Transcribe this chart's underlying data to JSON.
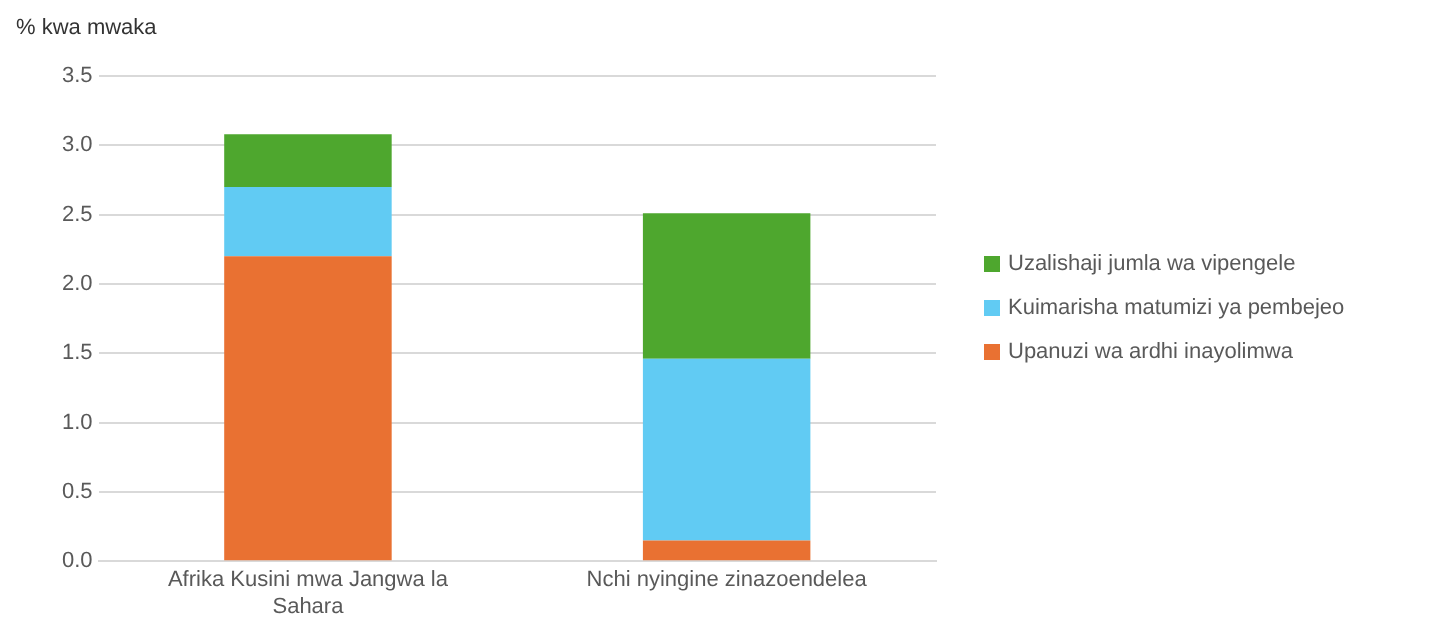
{
  "chart_data": {
    "type": "bar",
    "ylabel": "% kwa mwaka",
    "categories": [
      "Afrika Kusini mwa Jangwa la Sahara",
      "Nchi nyingine zinazoendelea"
    ],
    "stacked": true,
    "series": [
      {
        "name": "Upanuzi wa ardhi inayolimwa",
        "color": "#e97132",
        "values": [
          2.2,
          0.15
        ]
      },
      {
        "name": "Kuimarisha matumizi ya pembejeo",
        "color": "#61cbf3",
        "values": [
          0.5,
          1.31
        ]
      },
      {
        "name": "Uzalishaji jumla wa vipengele",
        "color": "#4ea72e",
        "values": [
          0.38,
          1.05
        ]
      }
    ],
    "ylim": [
      0,
      3.5
    ],
    "yticks": [
      {
        "value": 0,
        "label": "0.0"
      },
      0.5,
      {
        "value": 1,
        "label": "1.0"
      },
      1.5,
      {
        "value": 2,
        "label": "2.0"
      },
      2.5,
      {
        "value": 3,
        "label": "3.0"
      },
      3.5
    ],
    "grid": "y",
    "legend": "right"
  }
}
